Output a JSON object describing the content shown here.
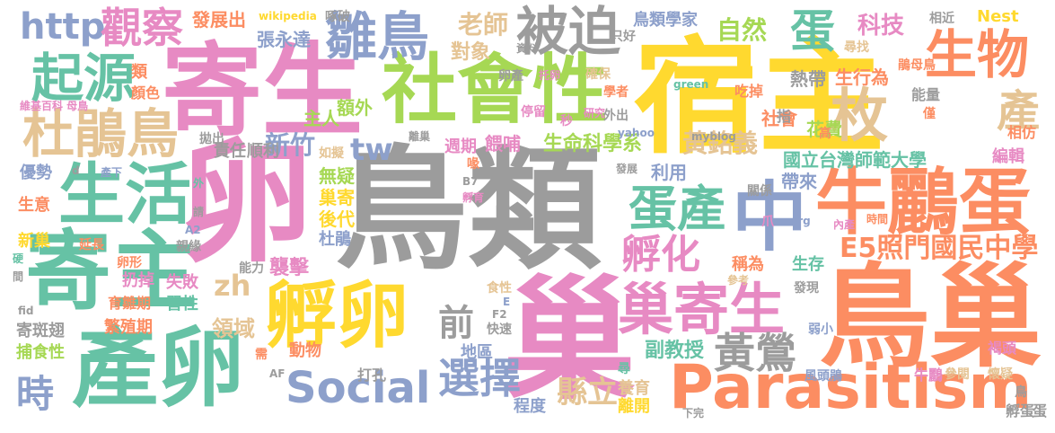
{
  "palette": {
    "gray": "#9c9c9c",
    "pink": "#e78ac3",
    "green": "#66c2a5",
    "orange": "#fc8d62",
    "blue": "#8da0cb",
    "lime": "#a6d854",
    "yellow": "#ffd92f",
    "tan": "#e5c494"
  },
  "words": [
    {
      "text": "鳥類",
      "color": "gray"
    },
    {
      "text": "宿主",
      "color": "yellow"
    },
    {
      "text": "卵",
      "color": "pink"
    },
    {
      "text": "巢",
      "color": "pink"
    },
    {
      "text": "寄生",
      "color": "pink"
    },
    {
      "text": "鳥巢",
      "color": "orange"
    },
    {
      "text": "寄主",
      "color": "green"
    },
    {
      "text": "社會性",
      "color": "lime"
    },
    {
      "text": "產卵",
      "color": "green"
    },
    {
      "text": "中",
      "color": "blue"
    },
    {
      "text": "牛鸝蛋",
      "color": "orange"
    },
    {
      "text": "Parasitism",
      "color": "orange"
    },
    {
      "text": "孵卵",
      "color": "yellow"
    },
    {
      "text": "巢寄生",
      "color": "pink"
    },
    {
      "text": "生活",
      "color": "green"
    },
    {
      "text": "杜鵑鳥",
      "color": "tan"
    },
    {
      "text": "起源",
      "color": "green"
    },
    {
      "text": "雛鳥",
      "color": "blue"
    },
    {
      "text": "被迫",
      "color": "gray"
    },
    {
      "text": "生物",
      "color": "orange"
    },
    {
      "text": "枚",
      "color": "tan"
    },
    {
      "text": "Social",
      "color": "blue"
    },
    {
      "text": "蛋產",
      "color": "green"
    },
    {
      "text": "孵化",
      "color": "pink"
    },
    {
      "text": "選擇",
      "color": "blue"
    },
    {
      "text": "黃鶯",
      "color": "gray"
    },
    {
      "text": "http",
      "color": "blue"
    },
    {
      "text": "觀察",
      "color": "pink"
    },
    {
      "text": "蛋",
      "color": "green"
    },
    {
      "text": "產",
      "color": "tan"
    },
    {
      "text": "前",
      "color": "gray"
    },
    {
      "text": "時",
      "color": "blue"
    },
    {
      "text": "E5照門國民中學",
      "color": "orange"
    },
    {
      "text": "tw",
      "color": "blue"
    },
    {
      "text": "zh",
      "color": "tan"
    },
    {
      "text": "新竹",
      "color": "blue"
    },
    {
      "text": "縣立",
      "color": "tan"
    },
    {
      "text": "老師",
      "color": "tan"
    },
    {
      "text": "自然",
      "color": "lime"
    },
    {
      "text": "科技",
      "color": "pink"
    },
    {
      "text": "生命科學系",
      "color": "lime"
    },
    {
      "text": "黃銘義",
      "color": "tan"
    },
    {
      "text": "國立台灣師範大學",
      "color": "green"
    },
    {
      "text": "領域",
      "color": "tan"
    },
    {
      "text": "襲擊",
      "color": "pink"
    },
    {
      "text": "副教授",
      "color": "green"
    },
    {
      "text": "生行為",
      "color": "orange"
    },
    {
      "text": "熱帶",
      "color": "gray"
    },
    {
      "text": "社會",
      "color": "orange"
    },
    {
      "text": "花費",
      "color": "lime"
    },
    {
      "text": "對象",
      "color": "tan"
    },
    {
      "text": "發展出",
      "color": "orange"
    },
    {
      "text": "張永達",
      "color": "blue"
    },
    {
      "text": "鳥類學家",
      "color": "blue"
    },
    {
      "text": "主人",
      "color": "lime"
    },
    {
      "text": "額外",
      "color": "lime"
    },
    {
      "text": "週期",
      "color": "pink"
    },
    {
      "text": "餵哺",
      "color": "pink"
    },
    {
      "text": "利用",
      "color": "blue"
    },
    {
      "text": "帶來",
      "color": "blue"
    },
    {
      "text": "無疑",
      "color": "lime"
    },
    {
      "text": "後代",
      "color": "yellow"
    },
    {
      "text": "巢寄",
      "color": "yellow"
    },
    {
      "text": "杜鵑",
      "color": "blue"
    },
    {
      "text": "生存",
      "color": "green"
    },
    {
      "text": "稱為",
      "color": "orange"
    },
    {
      "text": "責任",
      "color": "gray"
    },
    {
      "text": "順利",
      "color": "gray"
    },
    {
      "text": "優勢",
      "color": "blue"
    },
    {
      "text": "生意",
      "color": "orange"
    },
    {
      "text": "新巢",
      "color": "yellow"
    },
    {
      "text": "地區",
      "color": "blue"
    },
    {
      "text": "捕食性",
      "color": "lime"
    },
    {
      "text": "繁殖期",
      "color": "orange"
    },
    {
      "text": "寄斑翅",
      "color": "gray"
    },
    {
      "text": "扔掉",
      "color": "pink"
    },
    {
      "text": "失敗",
      "color": "pink"
    },
    {
      "text": "習性",
      "color": "green"
    },
    {
      "text": "育雛期",
      "color": "orange"
    },
    {
      "text": "動物",
      "color": "orange"
    },
    {
      "text": "打孔",
      "color": "gray"
    },
    {
      "text": "程度",
      "color": "blue"
    },
    {
      "text": "離開",
      "color": "yellow"
    },
    {
      "text": "養育",
      "color": "tan"
    },
    {
      "text": "風頭鵑",
      "color": "blue"
    },
    {
      "text": "牛鸝",
      "color": "pink"
    },
    {
      "text": "參閱",
      "color": "tan"
    },
    {
      "text": "懷疑",
      "color": "tan"
    },
    {
      "text": "孵蛋",
      "color": "gray"
    },
    {
      "text": "褐頭",
      "color": "pink"
    },
    {
      "text": "編輯",
      "color": "pink"
    },
    {
      "text": "相仿",
      "color": "orange"
    },
    {
      "text": "能量",
      "color": "gray"
    },
    {
      "text": "僅",
      "color": "orange"
    },
    {
      "text": "高",
      "color": "orange"
    },
    {
      "text": "吃掉",
      "color": "orange"
    },
    {
      "text": "指",
      "color": "gray"
    },
    {
      "text": "相近",
      "color": "gray"
    },
    {
      "text": "鵑母鳥",
      "color": "orange"
    },
    {
      "text": "尋找",
      "color": "tan"
    },
    {
      "text": "Nest",
      "color": "yellow"
    },
    {
      "text": "wikipedia",
      "color": "yellow"
    },
    {
      "text": "啄破",
      "color": "gray"
    },
    {
      "text": "類",
      "color": "orange"
    },
    {
      "text": "顏色",
      "color": "orange"
    },
    {
      "text": "維基百科 母鳥",
      "color": "pink"
    },
    {
      "text": "卵產",
      "color": "gray"
    },
    {
      "text": "托卵",
      "color": "pink"
    },
    {
      "text": "資料",
      "color": "gray"
    },
    {
      "text": "只好",
      "color": "gray"
    },
    {
      "text": "確保",
      "color": "tan"
    },
    {
      "text": "學者",
      "color": "orange"
    },
    {
      "text": "green",
      "color": "green"
    },
    {
      "text": "停留",
      "color": "pink"
    },
    {
      "text": "秒",
      "color": "pink"
    },
    {
      "text": "研究",
      "color": "pink"
    },
    {
      "text": "外出",
      "color": "gray"
    },
    {
      "text": "yahoo",
      "color": "blue"
    },
    {
      "text": "myblog",
      "color": "gray"
    },
    {
      "text": "拋出",
      "color": "gray"
    },
    {
      "text": "如擬",
      "color": "tan"
    },
    {
      "text": "離巢",
      "color": "gray"
    },
    {
      "text": "喙",
      "color": "orange"
    },
    {
      "text": "發展",
      "color": "gray"
    },
    {
      "text": "B7",
      "color": "gray"
    },
    {
      "text": "孵育",
      "color": "pink"
    },
    {
      "text": "關係",
      "color": "gray"
    },
    {
      "text": "爪",
      "color": "pink"
    },
    {
      "text": "org",
      "color": "blue"
    },
    {
      "text": "內產",
      "color": "pink"
    },
    {
      "text": "時間",
      "color": "orange"
    },
    {
      "text": "產下",
      "color": "blue"
    },
    {
      "text": "外",
      "color": "green"
    },
    {
      "text": "請",
      "color": "gray"
    },
    {
      "text": "d",
      "color": "gray"
    },
    {
      "text": "A2",
      "color": "blue"
    },
    {
      "text": "親緣",
      "color": "gray"
    },
    {
      "text": "延長",
      "color": "orange"
    },
    {
      "text": "卵形",
      "color": "orange"
    },
    {
      "text": "硬",
      "color": "green"
    },
    {
      "text": "間",
      "color": "gray"
    },
    {
      "text": "能力",
      "color": "gray"
    },
    {
      "text": "fid",
      "color": "gray"
    },
    {
      "text": "食性",
      "color": "tan"
    },
    {
      "text": "E",
      "color": "blue"
    },
    {
      "text": "F2",
      "color": "gray"
    },
    {
      "text": "快速",
      "color": "gray"
    },
    {
      "text": "參考",
      "color": "tan"
    },
    {
      "text": "發現",
      "color": "gray"
    },
    {
      "text": "弱小",
      "color": "blue"
    },
    {
      "text": "需",
      "color": "orange"
    },
    {
      "text": "AF",
      "color": "gray"
    },
    {
      "text": "尋",
      "color": "green"
    },
    {
      "text": "下完",
      "color": "gray"
    },
    {
      "text": "鳥",
      "color": "gray"
    },
    {
      "text": "蛋",
      "color": "gray"
    }
  ]
}
